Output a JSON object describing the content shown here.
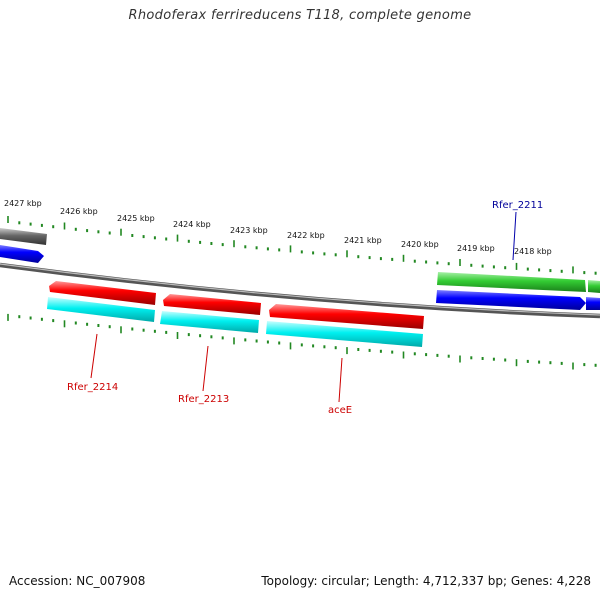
{
  "title": "Rhodoferax ferrireducens T118, complete genome",
  "footer": {
    "accession": "Accession: NC_007908",
    "summary": "Topology: circular; Length: 4,712,337 bp; Genes: 4,228"
  },
  "scale_labels": [
    "2427 kbp",
    "2426 kbp",
    "2425 kbp",
    "2424 kbp",
    "2423 kbp",
    "2422 kbp",
    "2421 kbp",
    "2420 kbp",
    "2419 kbp",
    "2418 kbp"
  ],
  "gene_labels": {
    "rfer_2211": "Rfer_2211",
    "rfer_2214": "Rfer_2214",
    "rfer_2213": "Rfer_2213",
    "acee": "aceE"
  },
  "colors": {
    "backbone": "#888888",
    "gene_forward": "#0000ee",
    "cds_forward": "#33cc33",
    "gene_reverse": "#ee0000",
    "cds_reverse": "#00e5e5",
    "other": "#666666",
    "tick": "#228822",
    "label_forward": "#000099",
    "label_reverse": "#cc0000"
  }
}
